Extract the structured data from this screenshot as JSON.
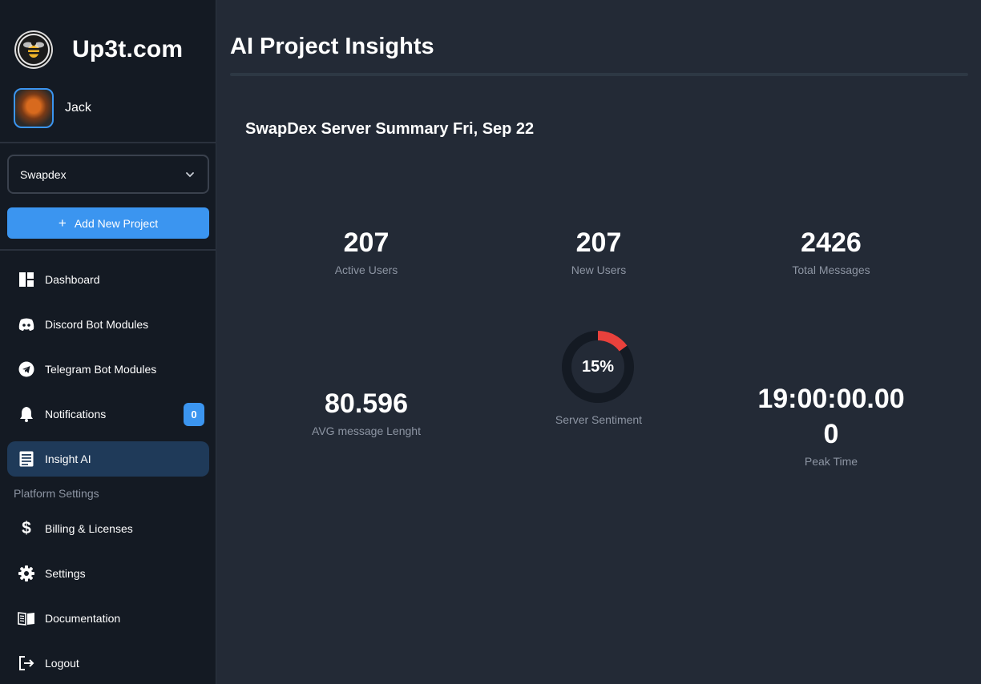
{
  "brand": {
    "name": "Up3t.com",
    "logo_icon": "bee-icon"
  },
  "user": {
    "name": "Jack"
  },
  "project_select": {
    "value": "Swapdex"
  },
  "add_project": {
    "label": "Add New Project"
  },
  "nav": {
    "dashboard": "Dashboard",
    "discord": "Discord Bot Modules",
    "telegram": "Telegram Bot Modules",
    "notifications": "Notifications",
    "notifications_count": "0",
    "insight": "Insight AI",
    "platform_settings": "Platform Settings",
    "billing": "Billing & Licenses",
    "settings": "Settings",
    "documentation": "Documentation",
    "logout": "Logout"
  },
  "main": {
    "title": "AI Project Insights",
    "summary_title": "SwapDex Server Summary Fri, Sep 22",
    "stats": {
      "active_users": {
        "value": "207",
        "label": "Active Users"
      },
      "new_users": {
        "value": "207",
        "label": "New Users"
      },
      "total_messages": {
        "value": "2426",
        "label": "Total Messages"
      },
      "avg_length": {
        "value": "80.596",
        "label": "AVG message Lenght"
      },
      "sentiment": {
        "value": "15%",
        "label": "Server Sentiment",
        "fraction": 0.15
      },
      "peak_time": {
        "value_line1": "19:00:00.00",
        "value_line2": "0",
        "label": "Peak Time"
      }
    }
  },
  "colors": {
    "accent": "#3b95f0",
    "sentiment_arc": "#e8413c",
    "sidebar_bg": "#141a23",
    "main_bg": "#232a36"
  }
}
